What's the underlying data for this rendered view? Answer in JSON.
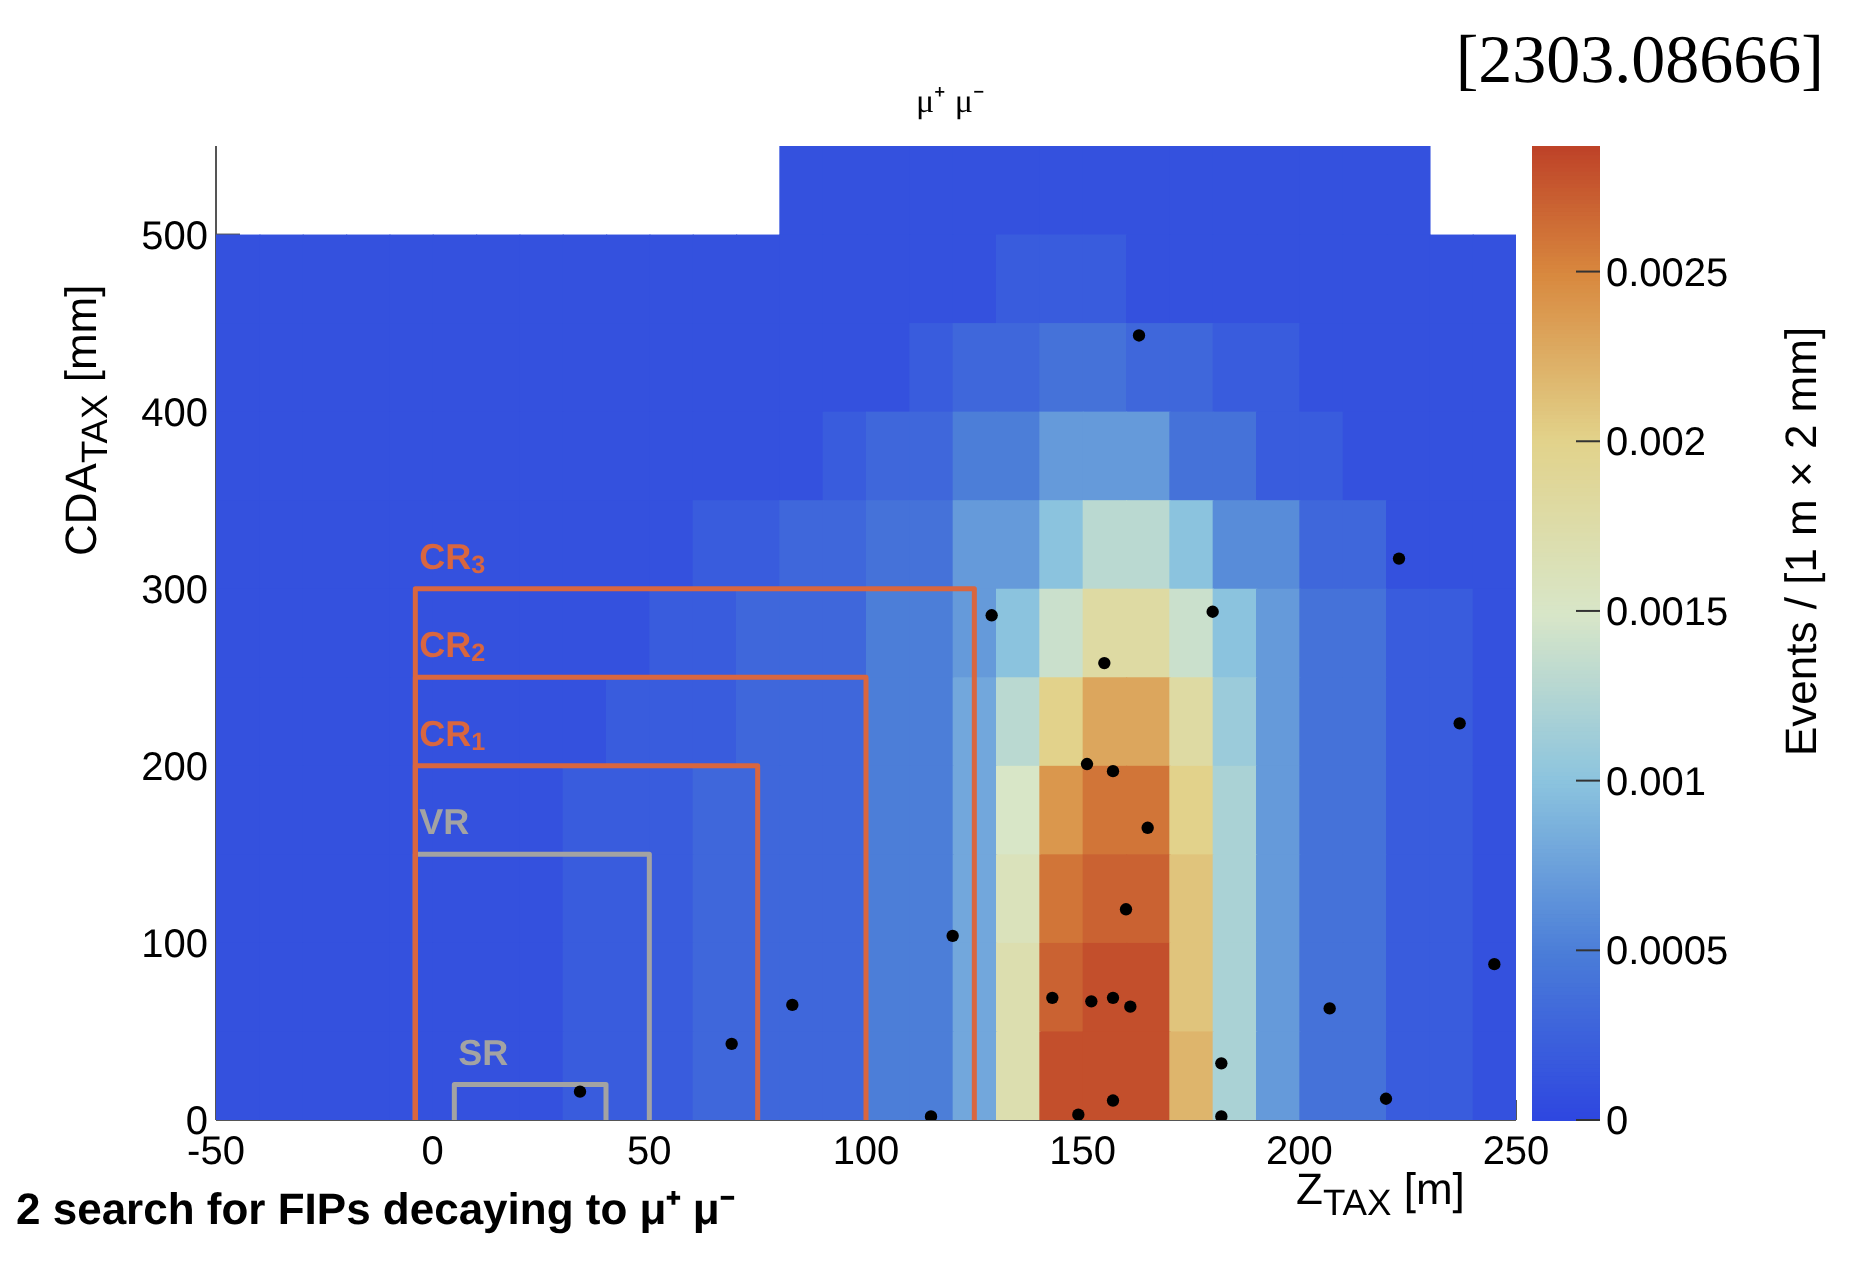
{
  "chart_data": {
    "type": "heatmap",
    "title": "μ⁺ μ⁻",
    "xlabel": "Z$_{TAX}$ [m]",
    "ylabel": "CDA$_{TAX}$ [mm]",
    "clabel": "Events / [1 m × 2 mm]",
    "annotations": [
      "[2303.08666]",
      "2 search for FIPs decaying to μ⁺ μ⁻"
    ],
    "xlim": [
      -50,
      250
    ],
    "xticks": [
      -50,
      0,
      50,
      100,
      150,
      200,
      250
    ],
    "ylim": [
      0,
      550
    ],
    "yticks": [
      0,
      100,
      200,
      300,
      400,
      500
    ],
    "clim": [
      0,
      0.00287
    ],
    "cticks": [
      0,
      0.0005,
      0.001,
      0.0015,
      0.002,
      0.0025
    ],
    "grid": false,
    "cells": [
      [
        null,
        null,
        null,
        null,
        null,
        null,
        null,
        null,
        null,
        null,
        null,
        null,
        null,
        0.0001,
        0.0001,
        0.0001,
        0.0001,
        0.0001,
        0.0001,
        0.0001,
        0.0001,
        0.0001,
        0.0001,
        0.0001,
        0.0001,
        0.0001,
        0.0001,
        0.0001,
        null,
        null
      ],
      [
        0.0001,
        0.0001,
        0.0001,
        0.0001,
        0.0001,
        0.0001,
        0.0001,
        0.0001,
        0.0001,
        0.0001,
        0.0001,
        0.0001,
        0.0001,
        0.0001,
        0.0001,
        0.0001,
        0.0001,
        0.0001,
        0.0002,
        0.0002,
        0.0002,
        0.0001,
        0.0001,
        0.0001,
        0.0001,
        0.0001,
        0.0001,
        0.0001,
        0.0001,
        0.0001
      ],
      [
        0.0001,
        0.0001,
        0.0001,
        0.0001,
        0.0001,
        0.0001,
        0.0001,
        0.0001,
        0.0001,
        0.0001,
        0.0001,
        0.0001,
        0.0001,
        0.0001,
        0.0001,
        0.0001,
        0.0002,
        0.0003,
        0.0003,
        0.0004,
        0.0004,
        0.0003,
        0.0003,
        0.0002,
        0.0002,
        0.0001,
        0.0001,
        0.0001,
        0.0001,
        0.0001
      ],
      [
        0.0001,
        0.0001,
        0.0001,
        0.0001,
        0.0001,
        0.0001,
        0.0001,
        0.0001,
        0.0001,
        0.0001,
        0.0001,
        0.0001,
        0.0001,
        0.0001,
        0.0002,
        0.0003,
        0.0003,
        0.0005,
        0.0005,
        0.0007,
        0.0007,
        0.0007,
        0.0004,
        0.0004,
        0.0002,
        0.0002,
        0.0001,
        0.0001,
        0.0001,
        0.0001
      ],
      [
        0.0001,
        0.0001,
        0.0001,
        0.0001,
        0.0001,
        0.0001,
        0.0001,
        0.0001,
        0.0001,
        0.0001,
        0.0001,
        0.0002,
        0.0002,
        0.0003,
        0.0003,
        0.0004,
        0.0004,
        0.0007,
        0.0007,
        0.001,
        0.0013,
        0.0013,
        0.001,
        0.0006,
        0.0006,
        0.0003,
        0.0003,
        0.0001,
        0.0001,
        0.0001
      ],
      [
        0.0001,
        0.0001,
        0.0001,
        0.0001,
        0.0001,
        0.0001,
        0.0001,
        0.0001,
        0.0001,
        0.0001,
        0.0002,
        0.0002,
        0.0003,
        0.0003,
        0.0003,
        0.0005,
        0.0005,
        0.0007,
        0.001,
        0.0014,
        0.0018,
        0.0018,
        0.0014,
        0.001,
        0.0007,
        0.0004,
        0.0004,
        0.0002,
        0.0002,
        0.0001
      ],
      [
        0.0001,
        0.0001,
        0.0001,
        0.0001,
        0.0001,
        0.0001,
        0.0001,
        0.0001,
        0.0001,
        0.0002,
        0.0002,
        0.0002,
        0.0003,
        0.0003,
        0.0003,
        0.0005,
        0.0005,
        0.0008,
        0.0013,
        0.002,
        0.0023,
        0.0023,
        0.0018,
        0.0011,
        0.0007,
        0.0004,
        0.0004,
        0.0002,
        0.0002,
        0.0001
      ],
      [
        0.0001,
        0.0001,
        0.0001,
        0.0001,
        0.0001,
        0.0001,
        0.0001,
        0.0001,
        0.0002,
        0.0002,
        0.0002,
        0.0003,
        0.0003,
        0.0003,
        0.0003,
        0.0005,
        0.0005,
        0.0008,
        0.0015,
        0.0024,
        0.0026,
        0.0026,
        0.002,
        0.0012,
        0.0007,
        0.0004,
        0.0004,
        0.0002,
        0.0002,
        0.0001
      ],
      [
        0.0001,
        0.0001,
        0.0001,
        0.0001,
        0.0001,
        0.0001,
        0.0001,
        0.0001,
        0.0002,
        0.0002,
        0.0002,
        0.0003,
        0.0003,
        0.0003,
        0.0003,
        0.0005,
        0.0005,
        0.0008,
        0.0016,
        0.0026,
        0.0027,
        0.0027,
        0.0021,
        0.0012,
        0.0007,
        0.0004,
        0.0004,
        0.0002,
        0.0002,
        0.0001
      ],
      [
        0.0001,
        0.0001,
        0.0001,
        0.0001,
        0.0001,
        0.0001,
        0.0001,
        0.0001,
        0.0002,
        0.0002,
        0.0002,
        0.0003,
        0.0003,
        0.0003,
        0.0003,
        0.0005,
        0.0005,
        0.0008,
        0.0017,
        0.0027,
        0.0028,
        0.0028,
        0.0021,
        0.0012,
        0.0007,
        0.0004,
        0.0004,
        0.0002,
        0.0002,
        0.0001
      ],
      [
        0.0001,
        0.0001,
        0.0001,
        0.0001,
        0.0001,
        0.0001,
        0.0001,
        0.0001,
        0.0002,
        0.0002,
        0.0002,
        0.0003,
        0.0003,
        0.0003,
        0.0003,
        0.0005,
        0.0005,
        0.0008,
        0.0017,
        0.0028,
        0.0028,
        0.0028,
        0.0022,
        0.0012,
        0.0007,
        0.0004,
        0.0004,
        0.0002,
        0.0002,
        0.0001
      ]
    ],
    "series": [
      {
        "type": "line",
        "name": "SR",
        "color": "#a3a3a3",
        "marker": "none",
        "x": [
          5,
          5,
          40,
          40
        ],
        "values": [
          0,
          20,
          20,
          0
        ]
      },
      {
        "type": "line",
        "name": "VR",
        "color": "#a3a3a3",
        "marker": "none",
        "x": [
          -4,
          -4,
          50,
          50
        ],
        "values": [
          0,
          150,
          150,
          0
        ]
      },
      {
        "type": "line",
        "name": "CR$_{1}$",
        "color": "#d9663f",
        "marker": "none",
        "x": [
          -4,
          -4,
          75,
          75
        ],
        "values": [
          0,
          200,
          200,
          0
        ]
      },
      {
        "type": "line",
        "name": "CR$_{2}$",
        "color": "#d9663f",
        "marker": "none",
        "x": [
          -4,
          -4,
          100,
          100
        ],
        "values": [
          0,
          250,
          250,
          0
        ]
      },
      {
        "type": "line",
        "name": "CR$_{3}$",
        "color": "#d9663f",
        "marker": "none",
        "x": [
          -4,
          -4,
          125,
          125
        ],
        "values": [
          0,
          300,
          300,
          0
        ]
      },
      {
        "type": "scatter",
        "color": "#000000",
        "marker": "circle",
        "x": [
          163,
          223,
          129,
          180,
          155,
          237,
          151,
          157,
          165,
          160,
          120,
          245,
          83,
          143,
          152,
          157,
          161,
          207,
          69,
          182,
          34,
          220,
          157,
          115,
          149,
          182
        ],
        "values": [
          443,
          317,
          285,
          287,
          258,
          224,
          201,
          197,
          165,
          119,
          104,
          88,
          65,
          69,
          67,
          69,
          64,
          63,
          43,
          32,
          16,
          12,
          11,
          2,
          3,
          2
        ]
      }
    ]
  }
}
